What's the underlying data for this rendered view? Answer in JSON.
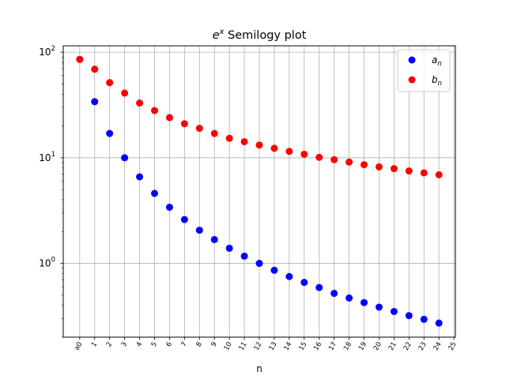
{
  "chart_data": {
    "type": "scatter",
    "title_base": "e",
    "title_sup": "x",
    "title_rest": " Semilogy plot",
    "xlabel": "n",
    "ylabel": "",
    "yscale": "log",
    "ylim": [
      0.2,
      115
    ],
    "xlim": [
      -1.1,
      25.1
    ],
    "grid": true,
    "legend_position": "top-right",
    "x_tick_labels": [
      "a0",
      "1",
      "2",
      "3",
      "4",
      "5",
      "6",
      "7",
      "8",
      "9",
      "10",
      "11",
      "12",
      "13",
      "14",
      "15",
      "16",
      "17",
      "18",
      "19",
      "20",
      "21",
      "22",
      "23",
      "24",
      "25"
    ],
    "y_ticks": [
      {
        "base": "10",
        "exp": "0",
        "value": 1
      },
      {
        "base": "10",
        "exp": "1",
        "value": 10
      },
      {
        "base": "10",
        "exp": "2",
        "value": 100
      }
    ],
    "series": [
      {
        "name_base": "a",
        "name_sub": "n",
        "color": "#0000ff",
        "x": [
          0,
          1,
          2,
          3,
          4,
          5,
          6,
          7,
          8,
          9,
          10,
          11,
          12,
          13,
          14,
          15,
          16,
          17,
          18,
          19,
          20,
          21,
          22,
          23,
          24
        ],
        "y": [
          85.5,
          34,
          17,
          10,
          6.6,
          4.6,
          3.4,
          2.6,
          2.06,
          1.68,
          1.39,
          1.17,
          1.0,
          0.86,
          0.75,
          0.66,
          0.59,
          0.52,
          0.47,
          0.425,
          0.385,
          0.35,
          0.32,
          0.295,
          0.272
        ]
      },
      {
        "name_base": "b",
        "name_sub": "n",
        "color": "#ff0000",
        "x": [
          0,
          1,
          2,
          3,
          4,
          5,
          6,
          7,
          8,
          9,
          10,
          11,
          12,
          13,
          14,
          15,
          16,
          17,
          18,
          19,
          20,
          21,
          22,
          23,
          24
        ],
        "y": [
          85.5,
          69,
          51.5,
          41,
          33,
          28,
          24,
          21,
          19,
          17,
          15.3,
          14.2,
          13.2,
          12.3,
          11.5,
          10.8,
          10.1,
          9.6,
          9.1,
          8.6,
          8.2,
          7.9,
          7.5,
          7.2,
          6.9
        ]
      }
    ]
  }
}
